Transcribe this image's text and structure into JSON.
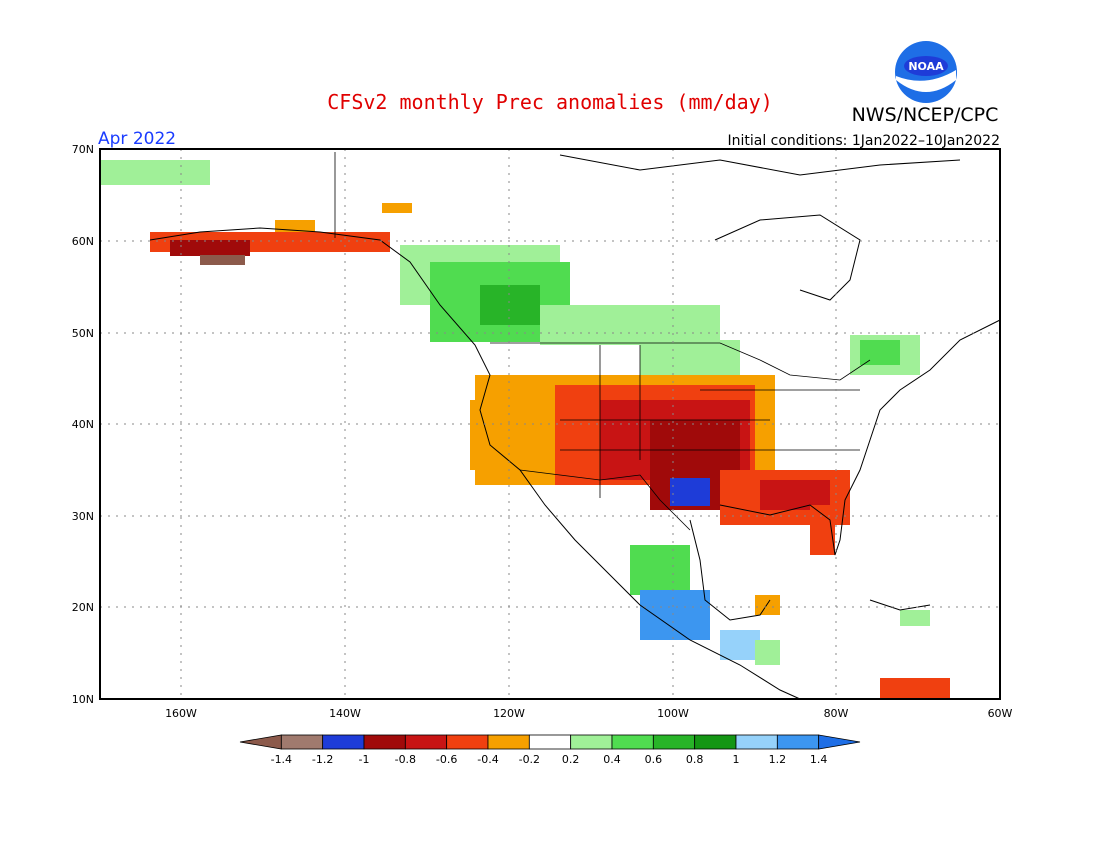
{
  "title": "CFSv2 monthly Prec anomalies (mm/day)",
  "period": "Apr 2022",
  "initial_conditions": "Initial conditions: 1Jan2022–10Jan2022",
  "org": "NWS/NCEP/CPC",
  "logo_text": "NOAA",
  "map": {
    "lon_range": [
      -172,
      -60
    ],
    "lat_range": [
      10,
      70
    ],
    "lat_labels": [
      "70N",
      "60N",
      "50N",
      "40N",
      "30N",
      "20N",
      "10N"
    ],
    "lon_labels": [
      "160W",
      "140W",
      "120W",
      "100W",
      "80W",
      "60W"
    ]
  },
  "colorbar": {
    "labels": [
      "-1.4",
      "-1.2",
      "-1",
      "-0.8",
      "-0.6",
      "-0.4",
      "-0.2",
      "0.2",
      "0.4",
      "0.6",
      "0.8",
      "1",
      "1.2",
      "1.4"
    ],
    "colors": [
      "#8c5a4b",
      "#a07a6e",
      "#1e3cd8",
      "#a00a0a",
      "#c81414",
      "#f04010",
      "#f6a000",
      "#ffffff",
      "#a0f098",
      "#50dc50",
      "#28b428",
      "#149614",
      "#96d2fa",
      "#3c96f0",
      "#1e6ee6"
    ]
  },
  "colors": {
    "dry_strong": "#a00a0a",
    "dry_mid": "#c81414",
    "dry": "#f04010",
    "dry_light": "#f6a000",
    "wet_light": "#a0f098",
    "wet": "#50dc50",
    "wet_mid": "#28b428",
    "blue": "#1e3cd8",
    "lightblue": "#96d2fa"
  }
}
